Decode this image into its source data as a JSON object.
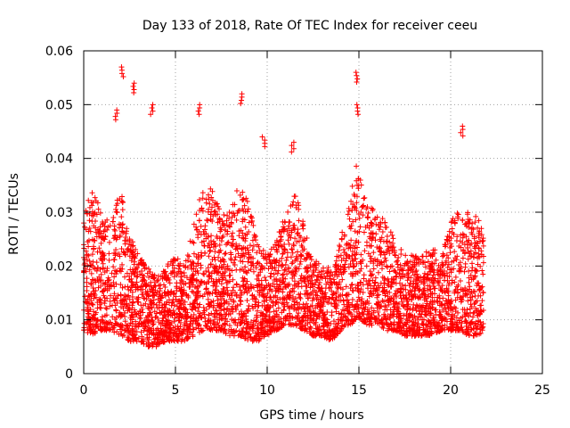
{
  "chart_data": {
    "type": "scatter",
    "title": "Day 133 of 2018, Rate Of TEC Index for receiver ceeu",
    "xlabel": "GPS time / hours",
    "ylabel": "ROTI / TECUs",
    "xlim": [
      0,
      25
    ],
    "ylim": [
      0,
      0.06
    ],
    "x_ticks": [
      0,
      5,
      10,
      15,
      20,
      25
    ],
    "y_ticks": [
      0,
      0.01,
      0.02,
      0.03,
      0.04,
      0.05,
      0.06
    ],
    "x_tick_labels": [
      "0",
      "5",
      "10",
      "15",
      "20",
      "25"
    ],
    "y_tick_labels": [
      "0",
      "0.01",
      "0.02",
      "0.03",
      "0.04",
      "0.05",
      "0.06"
    ],
    "grid": true,
    "marker": "plus",
    "color": "#ff0000",
    "x_range_of_data": [
      0,
      21.8
    ],
    "series_summary": {
      "typical_range": [
        0.005,
        0.03
      ],
      "notable_peaks": [
        {
          "x": 2.1,
          "y": 0.057
        },
        {
          "x": 2.7,
          "y": 0.054
        },
        {
          "x": 1.8,
          "y": 0.049
        },
        {
          "x": 3.7,
          "y": 0.05
        },
        {
          "x": 6.3,
          "y": 0.05
        },
        {
          "x": 8.6,
          "y": 0.052
        },
        {
          "x": 9.8,
          "y": 0.044
        },
        {
          "x": 11.4,
          "y": 0.043
        },
        {
          "x": 14.9,
          "y": 0.056
        },
        {
          "x": 14.9,
          "y": 0.05
        },
        {
          "x": 20.6,
          "y": 0.046
        }
      ]
    },
    "envelope": [
      [
        0.0,
        0.008,
        0.03
      ],
      [
        0.5,
        0.007,
        0.035
      ],
      [
        1.0,
        0.008,
        0.03
      ],
      [
        1.5,
        0.008,
        0.028
      ],
      [
        2.0,
        0.007,
        0.035
      ],
      [
        2.5,
        0.006,
        0.026
      ],
      [
        3.0,
        0.006,
        0.022
      ],
      [
        3.5,
        0.005,
        0.02
      ],
      [
        4.0,
        0.005,
        0.018
      ],
      [
        4.5,
        0.006,
        0.02
      ],
      [
        5.0,
        0.006,
        0.022
      ],
      [
        5.5,
        0.006,
        0.02
      ],
      [
        6.0,
        0.007,
        0.028
      ],
      [
        6.5,
        0.008,
        0.036
      ],
      [
        7.0,
        0.008,
        0.034
      ],
      [
        7.5,
        0.008,
        0.03
      ],
      [
        8.0,
        0.007,
        0.03
      ],
      [
        8.5,
        0.007,
        0.036
      ],
      [
        9.0,
        0.006,
        0.032
      ],
      [
        9.5,
        0.006,
        0.025
      ],
      [
        10.0,
        0.007,
        0.022
      ],
      [
        10.5,
        0.008,
        0.025
      ],
      [
        11.0,
        0.009,
        0.03
      ],
      [
        11.5,
        0.009,
        0.034
      ],
      [
        12.0,
        0.008,
        0.028
      ],
      [
        12.5,
        0.007,
        0.022
      ],
      [
        13.0,
        0.007,
        0.02
      ],
      [
        13.5,
        0.006,
        0.02
      ],
      [
        14.0,
        0.008,
        0.025
      ],
      [
        14.5,
        0.009,
        0.035
      ],
      [
        15.0,
        0.01,
        0.04
      ],
      [
        15.5,
        0.009,
        0.032
      ],
      [
        16.0,
        0.009,
        0.03
      ],
      [
        16.5,
        0.008,
        0.028
      ],
      [
        17.0,
        0.008,
        0.025
      ],
      [
        17.5,
        0.007,
        0.022
      ],
      [
        18.0,
        0.007,
        0.022
      ],
      [
        18.5,
        0.007,
        0.022
      ],
      [
        19.0,
        0.007,
        0.024
      ],
      [
        19.5,
        0.008,
        0.022
      ],
      [
        20.0,
        0.008,
        0.028
      ],
      [
        20.5,
        0.008,
        0.032
      ],
      [
        21.0,
        0.007,
        0.03
      ],
      [
        21.5,
        0.007,
        0.03
      ],
      [
        21.8,
        0.008,
        0.025
      ]
    ]
  }
}
